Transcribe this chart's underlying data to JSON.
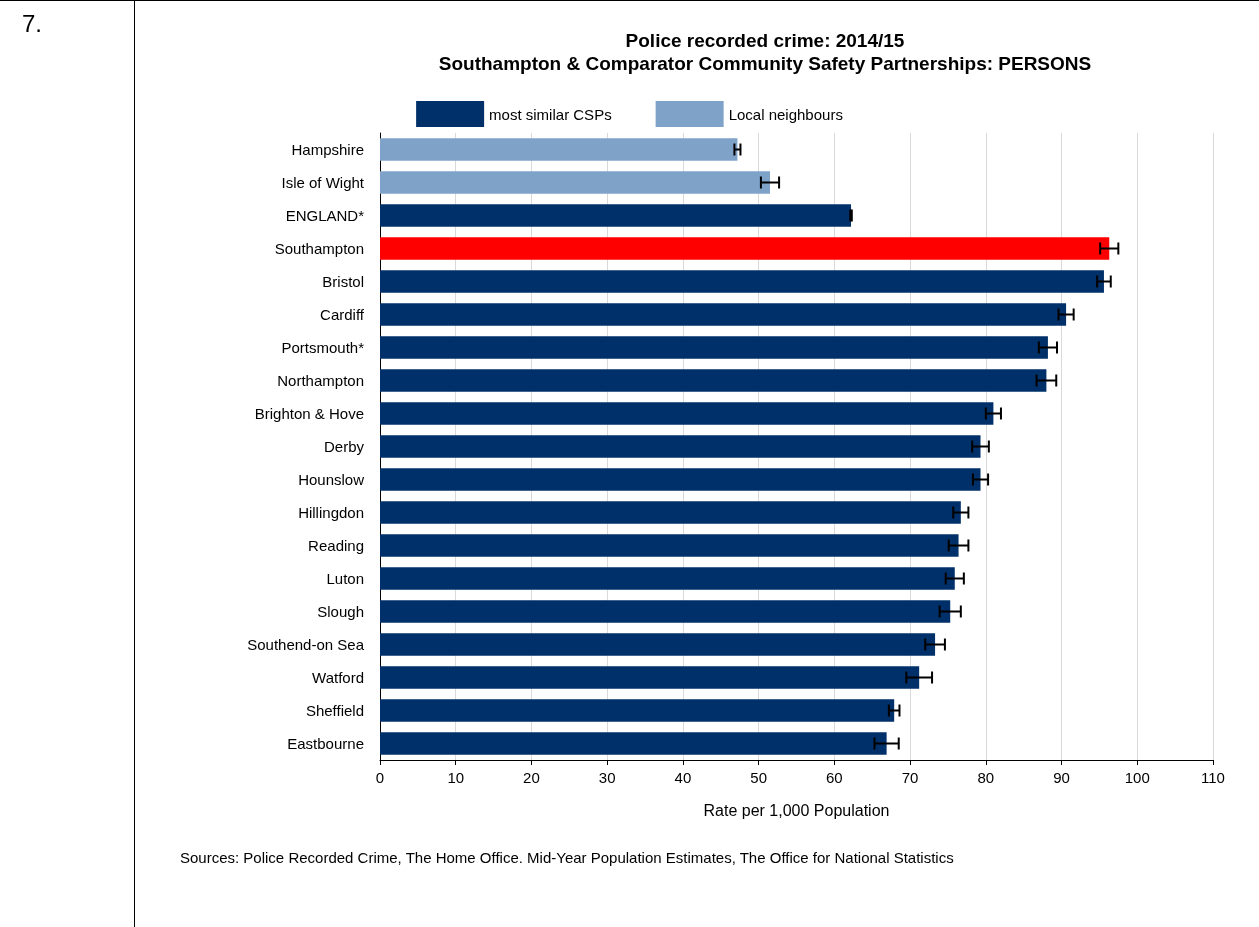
{
  "chart_data": {
    "type": "bar",
    "orientation": "horizontal",
    "stacked": true,
    "title": "Police recorded crime: 2014/15",
    "subtitle": "Southampton & Comparator Community Safety Partnerships: PERSONS",
    "xlabel": "Rate per 1,000 Population",
    "annotations": [
      "7.",
      "Sources: Police Recorded Crime, The Home Office. Mid-Year Population Estimates, The Office for National Statistics"
    ],
    "categories": [
      "Hampshire",
      "Isle of Wight",
      "ENGLAND*",
      "Southampton",
      "Bristol",
      "Cardiff",
      "Portsmouth*",
      "Northampton",
      "Brighton & Hove",
      "Derby",
      "Hounslow",
      "Hillingdon",
      "Reading",
      "Luton",
      "Slough",
      "Southend-on Sea",
      "Watford",
      "Sheffield",
      "Eastbourne"
    ],
    "series": [
      {
        "name": "most similar CSPs",
        "color": "#003069",
        "values": [
          null,
          null,
          null,
          null,
          95.6,
          90.6,
          88.2,
          88.0,
          81.0,
          79.3,
          79.3,
          76.7,
          76.4,
          75.9,
          75.3,
          73.3,
          71.2,
          67.9,
          66.9
        ],
        "errors": [
          null,
          null,
          null,
          null,
          0.9,
          1.0,
          1.2,
          1.3,
          1.0,
          1.1,
          1.0,
          1.0,
          1.3,
          1.2,
          1.4,
          1.3,
          1.7,
          0.7,
          1.6
        ]
      },
      {
        "name": "Local neighbours",
        "color": "#7fa2c9",
        "values": [
          47.2,
          51.5,
          null,
          null,
          null,
          null,
          null,
          null,
          null,
          null,
          null,
          null,
          null,
          null,
          null,
          null,
          null,
          null,
          null
        ],
        "errors": [
          0.4,
          1.2,
          null,
          null,
          null,
          null,
          null,
          null,
          null,
          null,
          null,
          null,
          null,
          null,
          null,
          null,
          null,
          null,
          null
        ]
      },
      {
        "colors": [
          "#003069",
          "#003069",
          "#003069",
          "#ff0000",
          "#003069",
          "#003069",
          "#003069",
          "#003069",
          "#003069",
          "#003069",
          "#003069",
          "#003069",
          "#003069",
          "#003069",
          "#003069",
          "#003069",
          "#003069",
          "#003069",
          "#003069"
        ],
        "values": [
          null,
          null,
          62.2,
          96.3,
          null,
          null,
          null,
          null,
          null,
          null,
          null,
          null,
          null,
          null,
          null,
          null,
          null,
          null,
          null
        ],
        "errors": [
          null,
          null,
          0.1,
          1.2,
          null,
          null,
          null,
          null,
          null,
          null,
          null,
          null,
          null,
          null,
          null,
          null,
          null,
          null,
          null
        ]
      }
    ],
    "xlim": [
      0,
      110
    ],
    "xticks": [
      0,
      10,
      20,
      30,
      40,
      50,
      60,
      70,
      80,
      90,
      100,
      110
    ],
    "grid": "x",
    "legend": "top"
  }
}
